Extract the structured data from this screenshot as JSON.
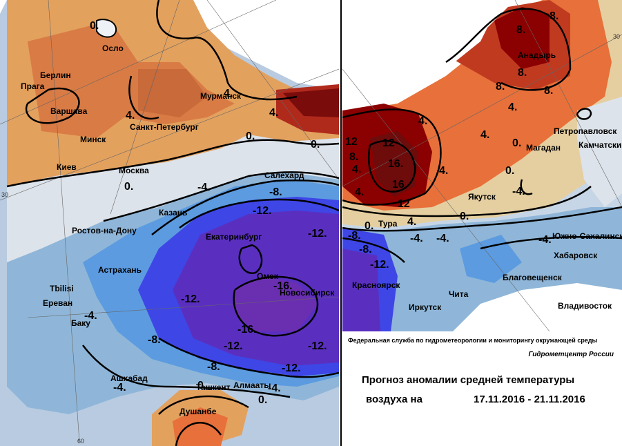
{
  "colors": {
    "land_neutral": "#e8e8e8",
    "ocean": "#ffffff",
    "anom_plus_12": "#8b0000",
    "anom_plus_8": "#c03a20",
    "anom_plus_4": "#e8703a",
    "anom_plus_2": "#f2a86a",
    "anom_0": "#e5cfa0",
    "anom_minus_2": "#c7d6e6",
    "anom_minus_4": "#8fb6d8",
    "anom_minus_8": "#5c9be0",
    "anom_minus_12": "#3e46e6",
    "anom_minus_16": "#5a2fc0"
  },
  "left_map": {
    "cities": [
      "Осло",
      "Берлин",
      "Прага",
      "Варшава",
      "Минск",
      "Мурманск",
      "Санкт-Петербург",
      "Киев",
      "Москва",
      "Казань",
      "Ростов-на-Дону",
      "Астрахань",
      "Tbilisi",
      "Ереван",
      "Баку",
      "Ашхабад",
      "Ташкент",
      "Алмааты",
      "Душанбе",
      "Екатеринбург",
      "Салехард",
      "Омск",
      "Новосибирск"
    ],
    "contours": [
      "0.",
      "4.",
      "4.",
      "4.",
      "0.",
      "0.",
      "-4.",
      "-8.",
      "-12.",
      "-12.",
      "-16.",
      "-16.",
      "-12.",
      "-12.",
      "-12.",
      "-8.",
      "-8.",
      "-4.",
      "-4.",
      "-4.",
      "0.",
      "0.",
      "-12.",
      "-12."
    ],
    "coords": [
      "30",
      "60"
    ]
  },
  "right_map": {
    "cities": [
      "Анадырь",
      "Петропавловск",
      "Камчатский",
      "Магадан",
      "Якутск",
      "Тура",
      "Южно-Сахалинск",
      "Хабаровск",
      "Благовещенск",
      "Красноярск",
      "Иркутск",
      "Чита",
      "Владивосток"
    ],
    "contours": [
      "8.",
      "8.",
      "8.",
      "8.",
      "8.",
      "4.",
      "4.",
      "4.",
      "4.",
      "12",
      "8.",
      "12",
      "16.",
      "16",
      "12",
      "4.",
      "4.",
      "0.",
      "0.",
      "0.",
      "-4.",
      "-4.",
      "-4.",
      "-8.",
      "-8.",
      "-12.",
      "0.",
      "4.",
      "-4."
    ],
    "coords": [
      "30"
    ]
  },
  "footer": {
    "agency": "Федеральная служба по гидрометеорологии и мониторингу окружающей среды",
    "center": "Гидрометцентр России",
    "title_line1": "Прогноз аномалии средней температуры",
    "title_line2": "воздуха на",
    "date_range": "17.11.2016 - 21.11.2016"
  }
}
